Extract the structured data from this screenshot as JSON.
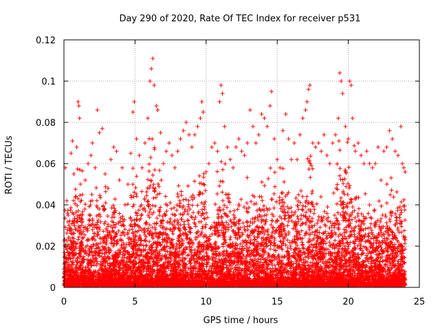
{
  "chart_data": {
    "type": "scatter",
    "title": "Day 290 of 2020, Rate Of TEC Index for receiver p531",
    "xlabel": "GPS time / hours",
    "ylabel": "ROTI / TECUs",
    "xlim": [
      0,
      25
    ],
    "ylim": [
      0,
      0.12
    ],
    "xticks": [
      0,
      5,
      10,
      15,
      20,
      25
    ],
    "yticks": [
      0,
      0.02,
      0.04,
      0.06,
      0.08,
      0.1,
      0.12
    ],
    "xtick_labels": [
      "0",
      "5",
      "10",
      "15",
      "20",
      "25"
    ],
    "ytick_labels": [
      "0",
      "0.02",
      "0.04",
      "0.06",
      "0.08",
      "0.1",
      "0.12"
    ],
    "grid": true,
    "legend": "none",
    "marker": "+",
    "color": "#ff0000",
    "x_coverage": [
      0,
      24
    ],
    "series": [
      {
        "points": [
          [
            0.1,
            0.058
          ],
          [
            0.2,
            0.042
          ],
          [
            0.3,
            0.035
          ],
          [
            0.5,
            0.065
          ],
          [
            0.6,
            0.071
          ],
          [
            0.7,
            0.055
          ],
          [
            0.9,
            0.068
          ],
          [
            1.0,
            0.09
          ],
          [
            1.05,
            0.088
          ],
          [
            1.1,
            0.082
          ],
          [
            1.3,
            0.045
          ],
          [
            1.5,
            0.052
          ],
          [
            1.7,
            0.06
          ],
          [
            1.9,
            0.064
          ],
          [
            2.0,
            0.07
          ],
          [
            2.2,
            0.058
          ],
          [
            2.35,
            0.086
          ],
          [
            2.5,
            0.075
          ],
          [
            2.7,
            0.077
          ],
          [
            2.9,
            0.055
          ],
          [
            3.1,
            0.048
          ],
          [
            3.3,
            0.062
          ],
          [
            3.5,
            0.068
          ],
          [
            3.7,
            0.066
          ],
          [
            3.9,
            0.052
          ],
          [
            4.1,
            0.058
          ],
          [
            4.3,
            0.04
          ],
          [
            4.5,
            0.05
          ],
          [
            4.7,
            0.065
          ],
          [
            4.85,
            0.085
          ],
          [
            4.95,
            0.09
          ],
          [
            5.1,
            0.072
          ],
          [
            5.3,
            0.064
          ],
          [
            5.5,
            0.058
          ],
          [
            5.7,
            0.07
          ],
          [
            5.9,
            0.082
          ],
          [
            6.05,
            0.1
          ],
          [
            6.15,
            0.106
          ],
          [
            6.25,
            0.111
          ],
          [
            6.35,
            0.098
          ],
          [
            6.5,
            0.088
          ],
          [
            6.6,
            0.086
          ],
          [
            6.8,
            0.075
          ],
          [
            7.0,
            0.06
          ],
          [
            7.2,
            0.066
          ],
          [
            7.4,
            0.07
          ],
          [
            7.6,
            0.064
          ],
          [
            7.8,
            0.058
          ],
          [
            8.0,
            0.066
          ],
          [
            8.2,
            0.072
          ],
          [
            8.4,
            0.076
          ],
          [
            8.6,
            0.08
          ],
          [
            8.8,
            0.074
          ],
          [
            9.0,
            0.068
          ],
          [
            9.2,
            0.074
          ],
          [
            9.4,
            0.078
          ],
          [
            9.6,
            0.082
          ],
          [
            9.7,
            0.09
          ],
          [
            9.8,
            0.085
          ],
          [
            10.0,
            0.056
          ],
          [
            10.2,
            0.06
          ],
          [
            10.4,
            0.068
          ],
          [
            10.6,
            0.07
          ],
          [
            10.8,
            0.066
          ],
          [
            10.95,
            0.09
          ],
          [
            11.05,
            0.098
          ],
          [
            11.15,
            0.094
          ],
          [
            11.3,
            0.078
          ],
          [
            11.5,
            0.068
          ],
          [
            11.7,
            0.062
          ],
          [
            11.9,
            0.058
          ],
          [
            12.1,
            0.068
          ],
          [
            12.3,
            0.072
          ],
          [
            12.5,
            0.066
          ],
          [
            12.7,
            0.064
          ],
          [
            12.9,
            0.07
          ],
          [
            13.1,
            0.086
          ],
          [
            13.3,
            0.078
          ],
          [
            13.5,
            0.07
          ],
          [
            13.7,
            0.074
          ],
          [
            13.9,
            0.084
          ],
          [
            14.1,
            0.082
          ],
          [
            14.3,
            0.078
          ],
          [
            14.5,
            0.088
          ],
          [
            14.6,
            0.095
          ],
          [
            14.8,
            0.072
          ],
          [
            15.0,
            0.062
          ],
          [
            15.2,
            0.058
          ],
          [
            15.4,
            0.076
          ],
          [
            15.6,
            0.084
          ],
          [
            15.8,
            0.072
          ],
          [
            16.0,
            0.062
          ],
          [
            16.2,
            0.07
          ],
          [
            16.4,
            0.062
          ],
          [
            16.6,
            0.074
          ],
          [
            16.8,
            0.082
          ],
          [
            17.0,
            0.086
          ],
          [
            17.1,
            0.09
          ],
          [
            17.2,
            0.096
          ],
          [
            17.3,
            0.098
          ],
          [
            17.5,
            0.07
          ],
          [
            17.7,
            0.068
          ],
          [
            17.9,
            0.07
          ],
          [
            18.1,
            0.066
          ],
          [
            18.3,
            0.074
          ],
          [
            18.5,
            0.064
          ],
          [
            18.7,
            0.06
          ],
          [
            18.9,
            0.07
          ],
          [
            19.1,
            0.074
          ],
          [
            19.3,
            0.082
          ],
          [
            19.4,
            0.104
          ],
          [
            19.5,
            0.1
          ],
          [
            19.6,
            0.094
          ],
          [
            19.8,
            0.078
          ],
          [
            20.0,
            0.072
          ],
          [
            20.1,
            0.1
          ],
          [
            20.2,
            0.098
          ],
          [
            20.3,
            0.082
          ],
          [
            20.5,
            0.066
          ],
          [
            20.7,
            0.07
          ],
          [
            20.9,
            0.064
          ],
          [
            21.1,
            0.06
          ],
          [
            21.3,
            0.066
          ],
          [
            21.5,
            0.06
          ],
          [
            21.7,
            0.058
          ],
          [
            21.9,
            0.06
          ],
          [
            22.1,
            0.068
          ],
          [
            22.3,
            0.052
          ],
          [
            22.5,
            0.066
          ],
          [
            22.7,
            0.068
          ],
          [
            22.9,
            0.076
          ],
          [
            23.1,
            0.072
          ],
          [
            23.3,
            0.066
          ],
          [
            23.5,
            0.064
          ],
          [
            23.7,
            0.078
          ],
          [
            23.8,
            0.06
          ],
          [
            23.9,
            0.058
          ],
          [
            24.0,
            0.056
          ]
        ]
      }
    ]
  }
}
